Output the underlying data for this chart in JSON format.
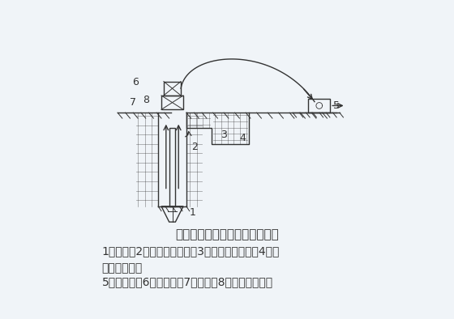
{
  "bg_color": "#f0f4f8",
  "line_color": "#333333",
  "title": "正循环回转钻进成孔原理示意图",
  "caption_line1": "1一钻头；2一泥浆循环方向；3一沉淀池及沉渣；4一泥",
  "caption_line2": "浆池及泥浆；",
  "caption_line3": "5一泥浆泵；6一水龙头；7一钻杆；8一钻机回转装置",
  "title_fontsize": 11,
  "caption_fontsize": 10
}
